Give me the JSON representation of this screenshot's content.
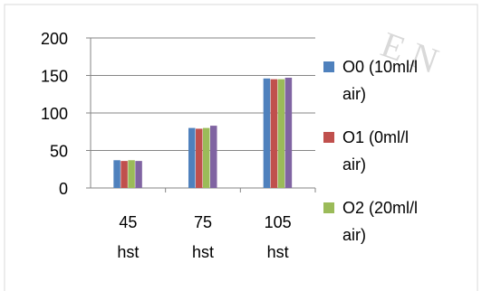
{
  "watermark": "E N",
  "chart_data": {
    "type": "bar",
    "categories": [
      "45 hst",
      "75 hst",
      "105 hst"
    ],
    "category_lines": [
      [
        "45",
        "hst"
      ],
      [
        "75",
        "hst"
      ],
      [
        "105",
        "hst"
      ]
    ],
    "ylim": [
      0,
      200
    ],
    "yticks": [
      0,
      50,
      100,
      150,
      200
    ],
    "grid": true,
    "legend_position": "right",
    "series": [
      {
        "name": "O0 (10ml/l air)",
        "name_lines": [
          "O0 (10ml/l",
          "air)"
        ],
        "color": "#4f81bd",
        "values": [
          37,
          80,
          146
        ]
      },
      {
        "name": "O1 (0ml/l air)",
        "name_lines": [
          "O1 (0ml/l",
          "air)"
        ],
        "color": "#c0504d",
        "values": [
          36,
          79,
          145
        ]
      },
      {
        "name": "O2 (20ml/l air)",
        "name_lines": [
          "O2 (20ml/l",
          "air)"
        ],
        "color": "#9bbb59",
        "values": [
          37,
          80,
          145
        ]
      },
      {
        "name": "",
        "name_lines": [],
        "color": "#8064a2",
        "values": [
          36,
          83,
          147
        ]
      }
    ]
  }
}
